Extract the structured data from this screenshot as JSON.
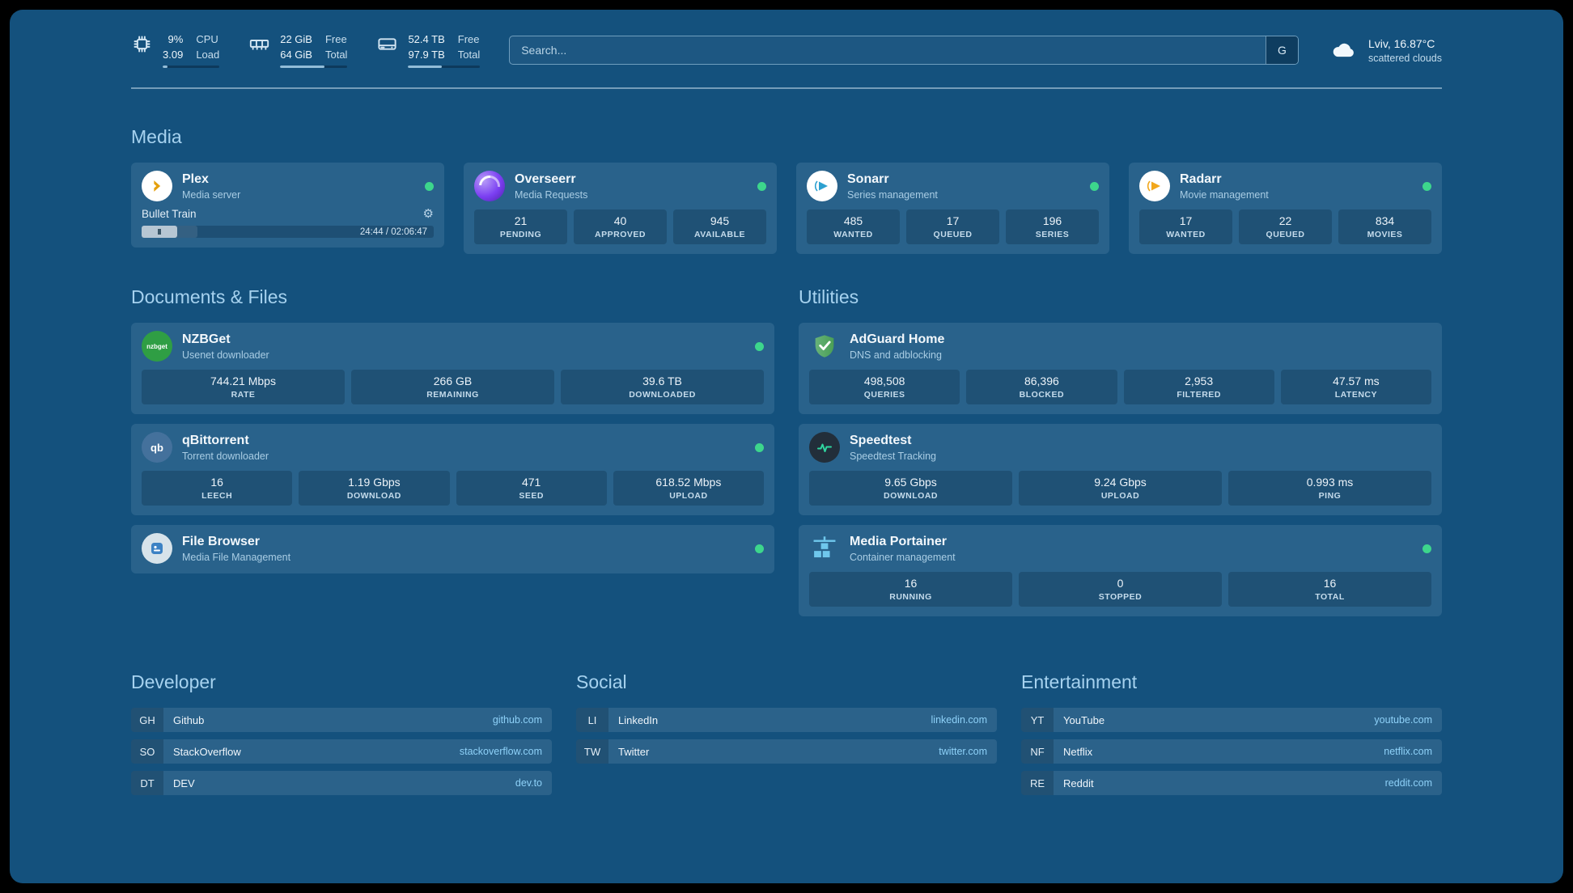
{
  "theme": {
    "page_bg": "#14517d",
    "accent_green": "#3dd68c",
    "link_blue": "#8ed1f8",
    "heading_blue": "#a6d2ef"
  },
  "topbar": {
    "system": [
      {
        "icon": "cpu-icon",
        "rows": [
          {
            "value": "9%",
            "label": "CPU"
          },
          {
            "value": "3.09",
            "label": "Load"
          }
        ],
        "progress_pct": 9
      },
      {
        "icon": "memory-icon",
        "rows": [
          {
            "value": "22 GiB",
            "label": "Free"
          },
          {
            "value": "64 GiB",
            "label": "Total"
          }
        ],
        "progress_pct": 66
      },
      {
        "icon": "disk-icon",
        "rows": [
          {
            "value": "52.4 TB",
            "label": "Free"
          },
          {
            "value": "97.9 TB",
            "label": "Total"
          }
        ],
        "progress_pct": 47
      }
    ],
    "search": {
      "placeholder": "Search...",
      "button_label": "G"
    },
    "weather": {
      "location": "Lviv, 16.87°C",
      "condition": "scattered clouds"
    }
  },
  "sections": {
    "media": {
      "heading": "Media",
      "cards": [
        {
          "title": "Plex",
          "subtitle": "Media server",
          "icon": "plex-icon",
          "status": "online",
          "player": {
            "title": "Bullet Train",
            "time": "24:44 / 02:06:47",
            "progress_pct": 19
          }
        },
        {
          "title": "Overseerr",
          "subtitle": "Media Requests",
          "icon": "overseerr-icon",
          "status": "online",
          "stats": [
            {
              "value": "21",
              "label": "PENDING"
            },
            {
              "value": "40",
              "label": "APPROVED"
            },
            {
              "value": "945",
              "label": "AVAILABLE"
            }
          ]
        },
        {
          "title": "Sonarr",
          "subtitle": "Series management",
          "icon": "sonarr-icon",
          "status": "online",
          "stats": [
            {
              "value": "485",
              "label": "WANTED"
            },
            {
              "value": "17",
              "label": "QUEUED"
            },
            {
              "value": "196",
              "label": "SERIES"
            }
          ]
        },
        {
          "title": "Radarr",
          "subtitle": "Movie management",
          "icon": "radarr-icon",
          "status": "online",
          "stats": [
            {
              "value": "17",
              "label": "WANTED"
            },
            {
              "value": "22",
              "label": "QUEUED"
            },
            {
              "value": "834",
              "label": "MOVIES"
            }
          ]
        }
      ]
    },
    "documents": {
      "heading": "Documents & Files",
      "cards": [
        {
          "title": "NZBGet",
          "subtitle": "Usenet downloader",
          "icon": "nzbget-icon",
          "icon_text": "nzbget",
          "status": "online",
          "stats": [
            {
              "value": "744.21 Mbps",
              "label": "RATE"
            },
            {
              "value": "266 GB",
              "label": "REMAINING"
            },
            {
              "value": "39.6 TB",
              "label": "DOWNLOADED"
            }
          ]
        },
        {
          "title": "qBittorrent",
          "subtitle": "Torrent downloader",
          "icon": "qbittorrent-icon",
          "icon_text": "qb",
          "status": "online",
          "stats": [
            {
              "value": "16",
              "label": "LEECH"
            },
            {
              "value": "1.19 Gbps",
              "label": "DOWNLOAD"
            },
            {
              "value": "471",
              "label": "SEED"
            },
            {
              "value": "618.52 Mbps",
              "label": "UPLOAD"
            }
          ]
        },
        {
          "title": "File Browser",
          "subtitle": "Media File Management",
          "icon": "filebrowser-icon",
          "status": "online"
        }
      ]
    },
    "utilities": {
      "heading": "Utilities",
      "cards": [
        {
          "title": "AdGuard Home",
          "subtitle": "DNS and adblocking",
          "icon": "adguard-icon",
          "stats": [
            {
              "value": "498,508",
              "label": "QUERIES"
            },
            {
              "value": "86,396",
              "label": "BLOCKED"
            },
            {
              "value": "2,953",
              "label": "FILTERED"
            },
            {
              "value": "47.57 ms",
              "label": "LATENCY"
            }
          ]
        },
        {
          "title": "Speedtest",
          "subtitle": "Speedtest Tracking",
          "icon": "speedtest-icon",
          "stats": [
            {
              "value": "9.65 Gbps",
              "label": "DOWNLOAD"
            },
            {
              "value": "9.24 Gbps",
              "label": "UPLOAD"
            },
            {
              "value": "0.993 ms",
              "label": "PING"
            }
          ]
        },
        {
          "title": "Media Portainer",
          "subtitle": "Container management",
          "icon": "portainer-icon",
          "status": "online",
          "stats": [
            {
              "value": "16",
              "label": "RUNNING"
            },
            {
              "value": "0",
              "label": "STOPPED"
            },
            {
              "value": "16",
              "label": "TOTAL"
            }
          ]
        }
      ]
    }
  },
  "bookmarks": {
    "groups": [
      {
        "heading": "Developer",
        "items": [
          {
            "abbr": "GH",
            "name": "Github",
            "url": "github.com"
          },
          {
            "abbr": "SO",
            "name": "StackOverflow",
            "url": "stackoverflow.com"
          },
          {
            "abbr": "DT",
            "name": "DEV",
            "url": "dev.to"
          }
        ]
      },
      {
        "heading": "Social",
        "items": [
          {
            "abbr": "LI",
            "name": "LinkedIn",
            "url": "linkedin.com"
          },
          {
            "abbr": "TW",
            "name": "Twitter",
            "url": "twitter.com"
          }
        ]
      },
      {
        "heading": "Entertainment",
        "items": [
          {
            "abbr": "YT",
            "name": "YouTube",
            "url": "youtube.com"
          },
          {
            "abbr": "NF",
            "name": "Netflix",
            "url": "netflix.com"
          },
          {
            "abbr": "RE",
            "name": "Reddit",
            "url": "reddit.com"
          }
        ]
      }
    ]
  }
}
